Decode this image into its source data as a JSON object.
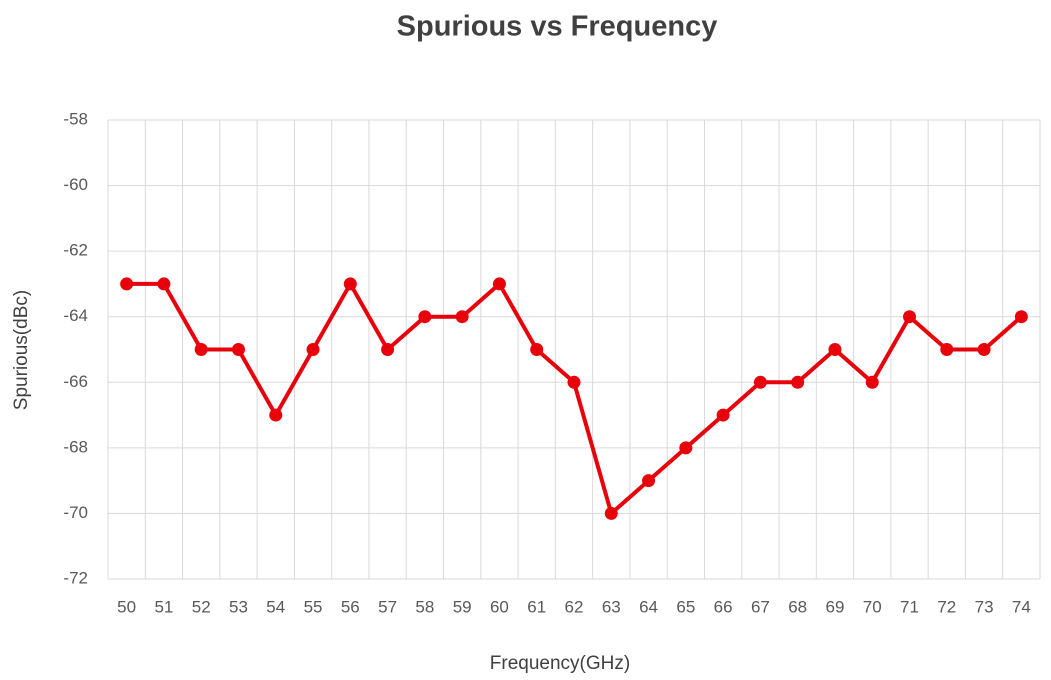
{
  "chart_data": {
    "type": "line",
    "title": "Spurious vs Frequency",
    "x_label": "Frequency(GHz)",
    "y_label": "Spurious(dBc)",
    "categories": [
      "50",
      "51",
      "52",
      "53",
      "54",
      "55",
      "56",
      "57",
      "58",
      "59",
      "60",
      "61",
      "62",
      "63",
      "64",
      "65",
      "66",
      "67",
      "68",
      "69",
      "70",
      "71",
      "72",
      "73",
      "74"
    ],
    "series": [
      {
        "name": "Spurious",
        "color": "#e8000b",
        "values": [
          -63,
          -63,
          -65,
          -65,
          -67,
          -65,
          -63,
          -65,
          -64,
          -64,
          -63,
          -65,
          -66,
          -70,
          -69,
          -68,
          -67,
          -66,
          -66,
          -65,
          -66,
          -64,
          -65,
          -65,
          -64
        ]
      }
    ],
    "ylim": [
      -72,
      -58
    ],
    "yticks": [
      -72,
      -70,
      -68,
      -66,
      -64,
      -62,
      -60,
      -58
    ],
    "grid": true
  }
}
